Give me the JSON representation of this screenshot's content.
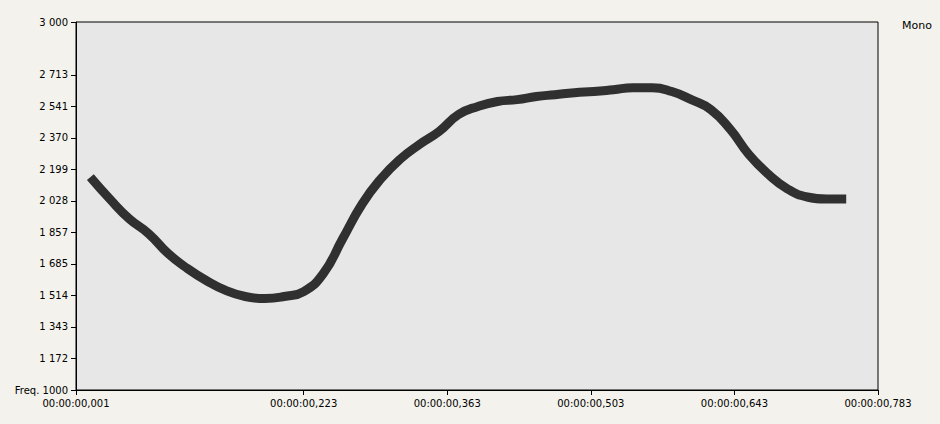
{
  "chart_data": {
    "type": "line",
    "annotation": "Mono",
    "x": [
      15,
      34,
      53,
      72,
      91,
      110,
      128,
      147,
      166,
      185,
      204,
      223,
      242,
      261,
      280,
      298,
      317,
      336,
      355,
      374,
      393,
      412,
      431,
      450,
      468,
      487,
      506,
      525,
      544,
      563,
      582,
      601,
      620,
      639,
      657,
      676,
      695,
      714,
      733,
      752
    ],
    "values": [
      2157,
      2038,
      1930,
      1849,
      1741,
      1659,
      1595,
      1541,
      1508,
      1497,
      1508,
      1535,
      1632,
      1822,
      2011,
      2146,
      2254,
      2335,
      2405,
      2497,
      2541,
      2568,
      2578,
      2595,
      2605,
      2616,
      2622,
      2632,
      2643,
      2643,
      2622,
      2578,
      2524,
      2416,
      2281,
      2173,
      2092,
      2049,
      2038,
      2038
    ],
    "color": "#1c1c1c",
    "marker": "none",
    "grid": false,
    "xlim": [
      1,
      783
    ],
    "xticks": [
      {
        "value": 1,
        "label": "00:00:00,001"
      },
      {
        "value": 223,
        "label": "00:00:00,223"
      },
      {
        "value": 363,
        "label": "00:00:00,363"
      },
      {
        "value": 503,
        "label": "00:00:00,503"
      },
      {
        "value": 643,
        "label": "00:00:00,643"
      },
      {
        "value": 783,
        "label": "00:00:00,783"
      }
    ],
    "ylim": [
      1000,
      3000
    ],
    "yticks": [
      {
        "value": 1000,
        "label": "Freq. 1000"
      },
      {
        "value": 1172,
        "label": "1 172"
      },
      {
        "value": 1343,
        "label": "1 343"
      },
      {
        "value": 1514,
        "label": "1 514"
      },
      {
        "value": 1685,
        "label": "1 685"
      },
      {
        "value": 1857,
        "label": "1 857"
      },
      {
        "value": 2028,
        "label": "2 028"
      },
      {
        "value": 2199,
        "label": "2 199"
      },
      {
        "value": 2370,
        "label": "2 370"
      },
      {
        "value": 2541,
        "label": "2 541"
      },
      {
        "value": 2713,
        "label": "2 713"
      },
      {
        "value": 3000,
        "label": "3 000"
      }
    ]
  }
}
